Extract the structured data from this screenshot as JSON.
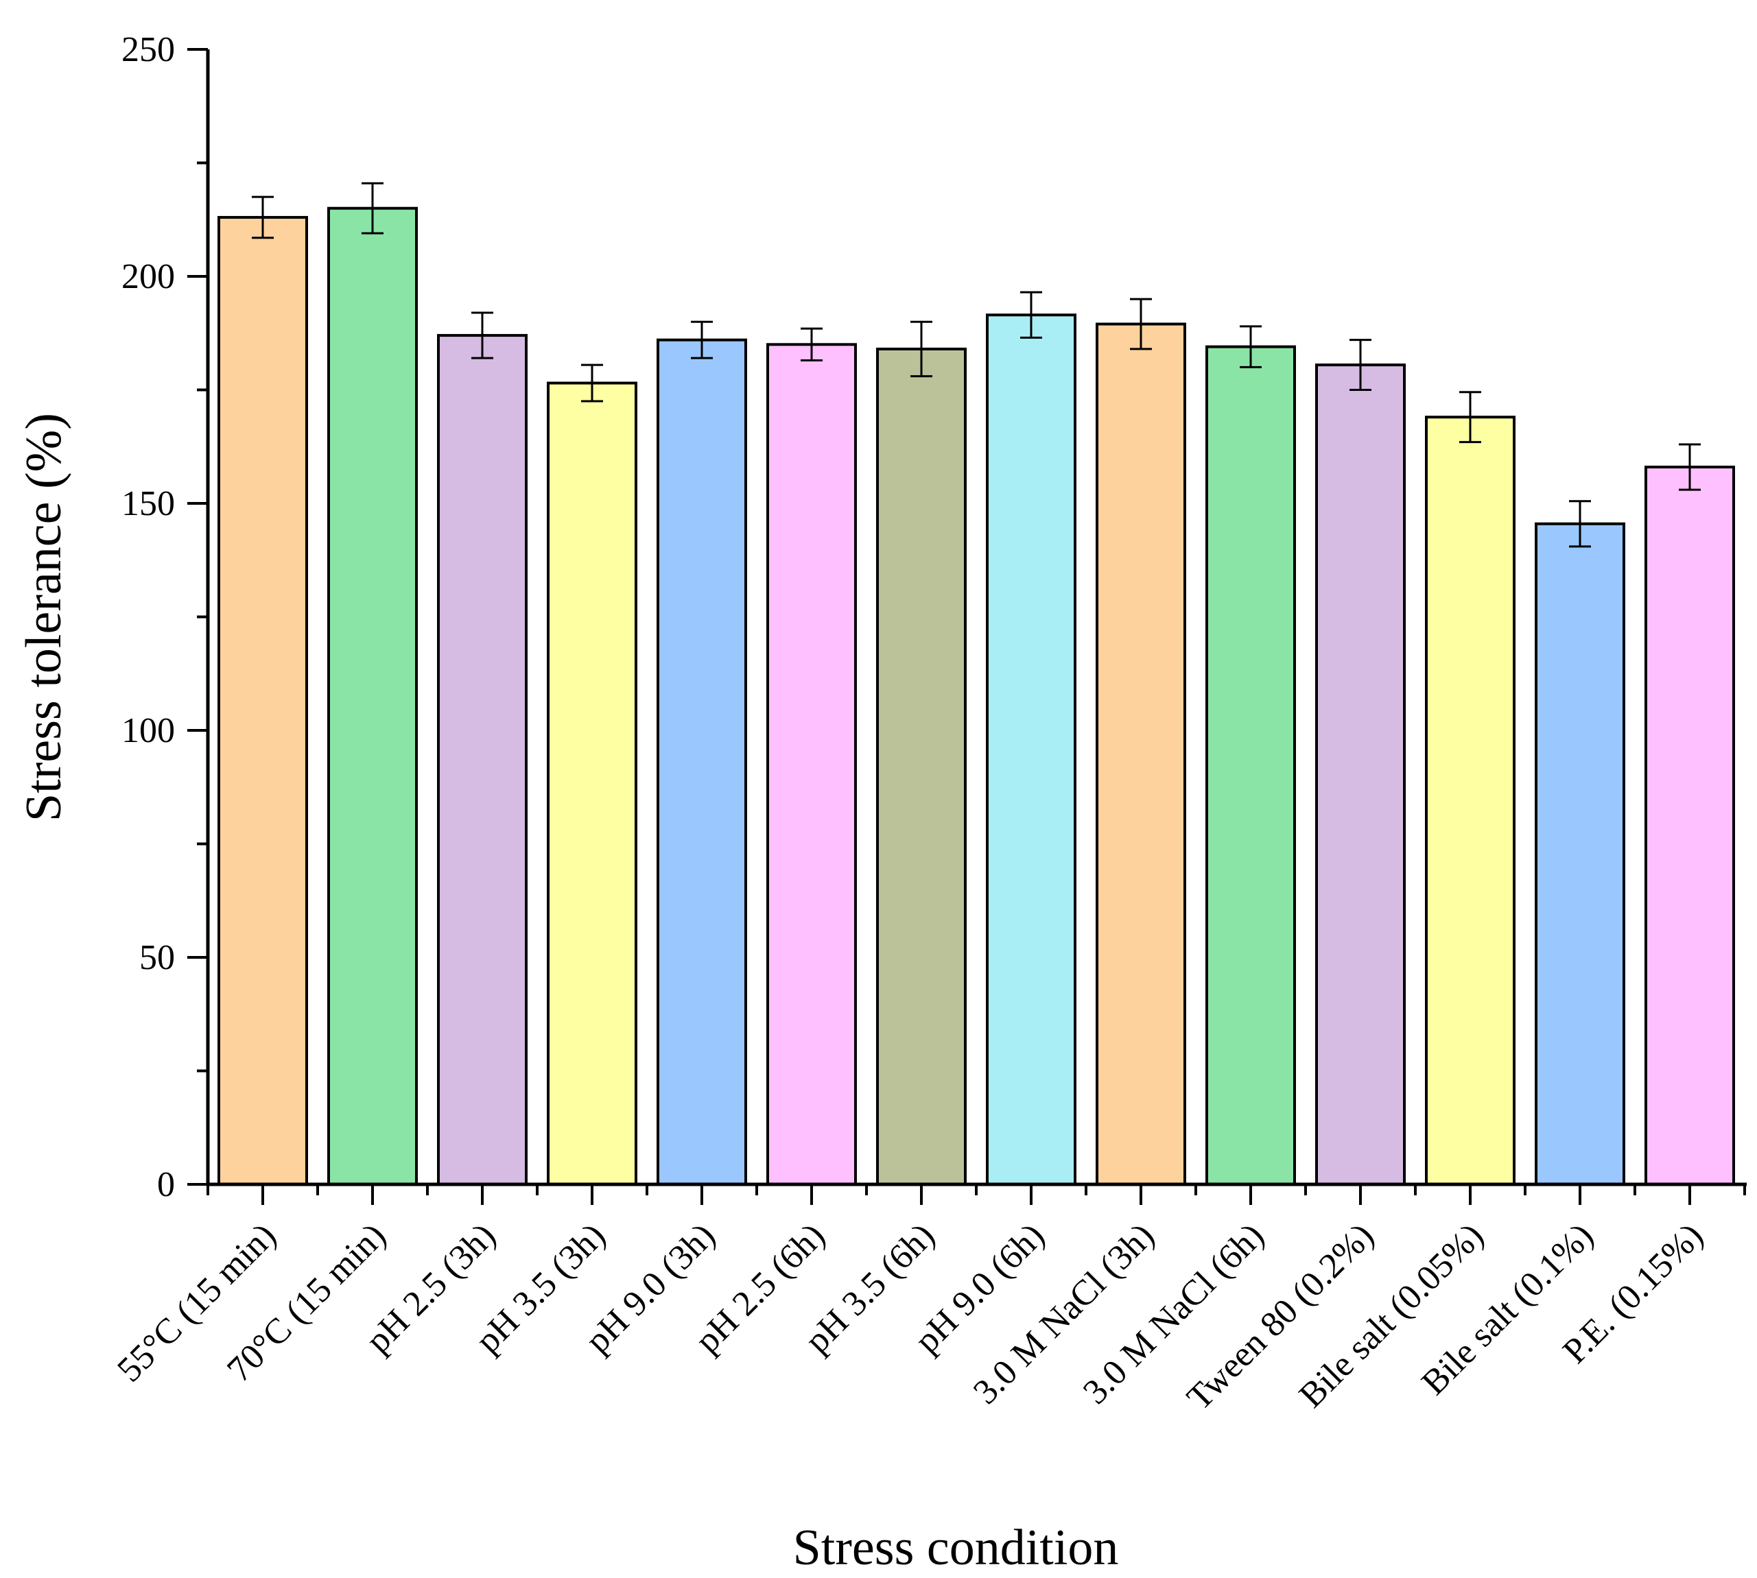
{
  "chart_data": {
    "type": "bar",
    "title": "",
    "xlabel": "Stress condition",
    "ylabel": "Stress tolerance (%)",
    "ylim": [
      0,
      250
    ],
    "yticks": [
      0,
      50,
      100,
      150,
      200,
      250
    ],
    "grid": false,
    "categories": [
      "55°C (15 min)",
      "70°C (15 min)",
      "pH 2.5 (3h)",
      "pH 3.5 (3h)",
      "pH 9.0 (3h)",
      "pH 2.5 (6h)",
      "pH 3.5 (6h)",
      "pH 9.0 (6h)",
      "3.0 M NaCl (3h)",
      "3.0 M NaCl (6h)",
      "Tween 80 (0.2%)",
      "Bile salt (0.05%)",
      "Bile salt (0.1%)",
      "P.E. (0.15%)"
    ],
    "values": [
      213,
      215,
      187,
      176.5,
      186,
      185,
      184,
      191.5,
      189.5,
      184.5,
      180.5,
      169,
      145.5,
      158
    ],
    "errors": [
      4.5,
      5.5,
      5,
      4,
      4,
      3.5,
      6,
      5,
      5.5,
      4.5,
      5.5,
      5.5,
      5,
      5
    ],
    "colors": [
      "#FED29D",
      "#8AE4A6",
      "#D6BBE2",
      "#FEFEA2",
      "#99C7FE",
      "#FEC0FE",
      "#BBC299",
      "#AAEEF5",
      "#FED29D",
      "#8AE4A6",
      "#D6BBE2",
      "#FEFEA2",
      "#99C7FE",
      "#FEC0FE"
    ]
  }
}
